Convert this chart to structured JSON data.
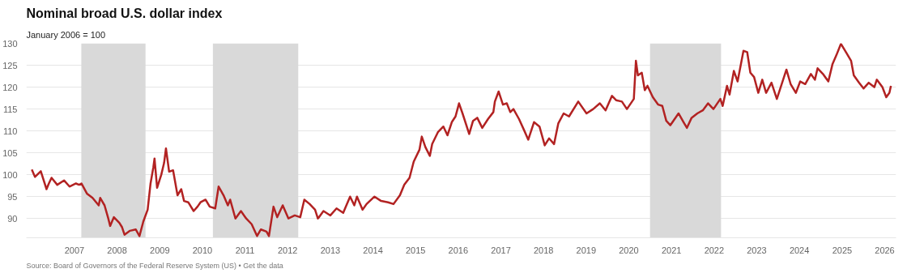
{
  "chart_data": {
    "type": "line",
    "title": "Nominal broad U.S. dollar index",
    "subtitle": "January 2006 = 100",
    "annotations": [
      "Source: Board of Governors of the Federal Reserve System (US) • Get the data"
    ],
    "x": [
      "2006-01-01",
      "2006-01-28",
      "2006-03-19",
      "2006-05-07",
      "2006-05-27",
      "2006-06-19",
      "2006-08-07",
      "2006-10-04",
      "2006-11-20",
      "2007-01-14",
      "2007-02-10",
      "2007-03-02",
      "2007-04-18",
      "2007-06-05",
      "2007-07-28",
      "2007-08-10",
      "2007-09-16",
      "2007-10-18",
      "2007-11-03",
      "2007-12-05",
      "2008-01-21",
      "2008-02-13",
      "2008-03-05",
      "2008-04-21",
      "2008-06-09",
      "2008-07-11",
      "2008-08-13",
      "2008-09-19",
      "2008-10-14",
      "2008-11-07",
      "2008-11-17",
      "2008-12-09",
      "2009-01-14",
      "2009-02-07",
      "2009-02-23",
      "2009-03-22",
      "2009-04-25",
      "2009-06-02",
      "2009-07-04",
      "2009-07-28",
      "2009-09-02",
      "2009-10-18",
      "2009-11-20",
      "2009-12-16",
      "2010-01-28",
      "2010-03-05",
      "2010-04-21",
      "2010-05-20",
      "2010-07-01",
      "2010-08-07",
      "2010-08-27",
      "2010-10-11",
      "2010-11-27",
      "2011-01-11",
      "2011-02-27",
      "2011-04-14",
      "2011-05-17",
      "2011-07-04",
      "2011-07-25",
      "2011-09-02",
      "2011-10-04",
      "2011-11-20",
      "2012-01-08",
      "2012-03-02",
      "2012-04-18",
      "2012-05-23",
      "2012-07-08",
      "2012-08-23",
      "2012-09-16",
      "2012-09-26",
      "2012-11-03",
      "2013-01-01",
      "2013-02-23",
      "2013-04-21",
      "2013-06-19",
      "2013-07-25",
      "2013-08-17",
      "2013-10-04",
      "2013-11-07",
      "2014-01-14",
      "2014-03-12",
      "2014-05-10",
      "2014-06-26",
      "2014-08-20",
      "2014-09-26",
      "2014-11-10",
      "2014-12-16",
      "2015-02-03",
      "2015-02-23",
      "2015-03-26",
      "2015-05-03",
      "2015-05-23",
      "2015-07-11",
      "2015-08-27",
      "2015-10-01",
      "2015-11-07",
      "2015-12-09",
      "2016-01-08",
      "2016-02-07",
      "2016-04-04",
      "2016-05-07",
      "2016-06-12",
      "2016-07-25",
      "2016-09-12",
      "2016-10-28",
      "2016-11-10",
      "2016-12-12",
      "2017-01-18",
      "2017-02-20",
      "2017-03-22",
      "2017-04-18",
      "2017-06-05",
      "2017-07-21",
      "2017-08-23",
      "2017-10-11",
      "2017-11-27",
      "2018-01-11",
      "2018-02-17",
      "2018-04-01",
      "2018-05-07",
      "2018-06-22",
      "2018-08-07",
      "2018-10-25",
      "2019-01-04",
      "2019-03-02",
      "2019-04-28",
      "2019-06-16",
      "2019-08-10",
      "2019-09-16",
      "2019-11-03",
      "2019-12-16",
      "2020-02-13",
      "2020-03-02",
      "2020-03-19",
      "2020-04-21",
      "2020-05-17",
      "2020-06-09",
      "2020-07-25",
      "2020-09-09",
      "2020-10-14",
      "2020-11-17",
      "2020-12-22",
      "2021-03-02",
      "2021-04-14",
      "2021-05-13",
      "2021-06-22",
      "2021-08-10",
      "2021-09-26",
      "2021-11-10",
      "2021-12-26",
      "2022-02-23",
      "2022-03-15",
      "2022-04-21",
      "2022-05-13",
      "2022-06-19",
      "2022-07-21",
      "2022-09-09",
      "2022-10-11",
      "2022-11-07",
      "2022-12-09",
      "2023-01-14",
      "2023-02-17",
      "2023-03-22",
      "2023-05-07",
      "2023-06-22",
      "2023-07-25",
      "2023-09-12",
      "2023-10-18",
      "2023-12-02",
      "2024-01-08",
      "2024-02-20",
      "2024-04-08",
      "2024-05-13",
      "2024-06-05",
      "2024-07-21",
      "2024-09-05",
      "2024-10-11",
      "2024-11-13",
      "2024-12-22",
      "2025-02-03",
      "2025-03-19",
      "2025-04-11",
      "2025-05-27",
      "2025-07-04",
      "2025-08-17",
      "2025-10-04",
      "2025-10-25",
      "2025-12-12",
      "2026-01-14",
      "2026-02-10",
      "2026-02-23"
    ],
    "series": [
      {
        "color": "#b22222",
        "values": [
          101.2,
          99.5,
          100.8,
          96.7,
          98,
          99.3,
          97.7,
          98.7,
          97.3,
          98,
          97.7,
          98,
          95.7,
          94.7,
          93,
          94.7,
          93,
          90,
          88.3,
          90.3,
          89,
          88,
          86.3,
          87.2,
          87.5,
          86,
          89.3,
          92,
          98,
          101.7,
          103.7,
          97,
          100,
          102.7,
          106,
          100.7,
          101,
          95.3,
          96.7,
          94,
          93.7,
          91.7,
          92.7,
          93.7,
          94.3,
          92.7,
          92.3,
          97.3,
          95.3,
          93,
          94.3,
          90,
          91.7,
          90,
          88.7,
          86,
          87.5,
          87,
          86,
          92.7,
          90.3,
          93,
          90,
          90.7,
          90.3,
          94.3,
          93.3,
          92,
          90,
          90.3,
          91.7,
          90.7,
          92.3,
          91.3,
          95,
          93,
          95,
          92,
          93.3,
          95,
          94,
          93.7,
          93.3,
          95.3,
          97.7,
          99.3,
          103,
          105.7,
          108.7,
          106.3,
          104.3,
          107,
          109.7,
          111,
          109,
          112,
          113.3,
          116.3,
          114,
          109.3,
          112.3,
          113,
          110.7,
          112.7,
          114.3,
          116.7,
          119,
          116,
          116.3,
          114.3,
          115,
          112.7,
          110,
          108,
          112,
          111,
          106.7,
          108.3,
          107,
          111.7,
          114,
          113.3,
          116.7,
          114,
          115,
          116.3,
          114.7,
          118,
          117,
          116.7,
          115,
          117.3,
          126,
          122.7,
          123.3,
          119.3,
          120.3,
          117.7,
          116,
          115.7,
          112.3,
          111.3,
          114,
          112,
          110.7,
          113,
          114,
          114.7,
          116.3,
          115,
          117.3,
          115.7,
          120.3,
          118.3,
          123.7,
          121.3,
          128.3,
          128,
          123.3,
          122.3,
          118.7,
          121.7,
          118.7,
          121,
          117.3,
          120,
          124,
          120.7,
          118.7,
          121.3,
          120.7,
          123,
          121.7,
          124.3,
          123,
          121.3,
          125.3,
          127.3,
          129.9,
          128,
          126,
          122.7,
          121,
          119.7,
          121,
          120,
          121.7,
          120,
          117.7,
          118.7,
          120.3
        ]
      }
    ],
    "xlim": [
      "2005-11-15",
      "2026-04-08"
    ],
    "xticks": [
      "2007",
      "2008",
      "2009",
      "2010",
      "2011",
      "2012",
      "2013",
      "2014",
      "2015",
      "2016",
      "2017",
      "2018",
      "2019",
      "2020",
      "2021",
      "2022",
      "2023",
      "2024",
      "2025",
      "2026"
    ],
    "ylim": [
      85.6,
      130
    ],
    "yticks": [
      90,
      95,
      100,
      105,
      110,
      115,
      120,
      125,
      130
    ],
    "bands": [
      {
        "axis": "x",
        "from": "2007-03",
        "to": "2008-09",
        "color": "#d9d9d9"
      },
      {
        "axis": "x",
        "from": "2010-04",
        "to": "2012-04",
        "color": "#d9d9d9"
      },
      {
        "axis": "x",
        "from": "2020-07",
        "to": "2022-03",
        "color": "#d9d9d9"
      }
    ],
    "grid": "y"
  }
}
